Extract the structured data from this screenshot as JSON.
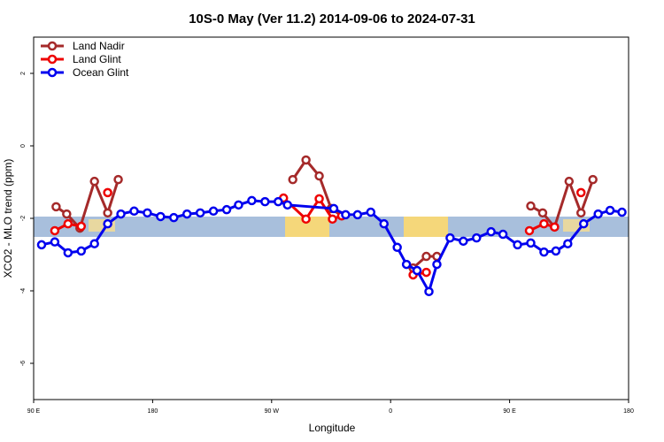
{
  "chart_data": {
    "type": "line",
    "title": "10S-0 May (Ver 11.2)   2014-09-06 to 2024-07-31",
    "x_label": "Longitude",
    "y_label": "XCO2 - MLO trend (ppm)",
    "xlim": [
      90,
      540
    ],
    "xticks": [
      {
        "value": 90,
        "label": "90 E"
      },
      {
        "value": 180,
        "label": "180"
      },
      {
        "value": 270,
        "label": "90 W"
      },
      {
        "value": 360,
        "label": "0"
      },
      {
        "value": 450,
        "label": "90 E"
      },
      {
        "value": 540,
        "label": "180"
      }
    ],
    "ylim": [
      -7,
      3
    ],
    "yticks": [
      -6,
      -4,
      -2,
      0,
      2
    ],
    "legend": "upper left",
    "series": [
      {
        "name": "Land Nadir",
        "color": "#a52a2a",
        "x": [
          107,
          115,
          125,
          136,
          146,
          154,
          null,
          286,
          296,
          306,
          315,
          323,
          null,
          377,
          387,
          395,
          null,
          466,
          475,
          484,
          495,
          504,
          513
        ],
        "values": [
          -1.68,
          -1.88,
          -2.27,
          -0.98,
          -1.85,
          -0.93,
          null,
          -0.93,
          -0.39,
          -0.83,
          -1.73,
          -1.93,
          null,
          -3.37,
          -3.05,
          -3.05,
          null,
          -1.66,
          -1.85,
          -2.24,
          -0.98,
          -1.85,
          -0.93
        ]
      },
      {
        "name": "Land Glint",
        "color": "#ee0000",
        "x": [
          106,
          116,
          126,
          null,
          146,
          null,
          279,
          296,
          306,
          316,
          323,
          null,
          377,
          387,
          null,
          465,
          476,
          484,
          null,
          504
        ],
        "values": [
          -2.34,
          -2.15,
          -2.22,
          null,
          -1.29,
          null,
          -1.44,
          -2.02,
          -1.46,
          -2.02,
          -1.93,
          null,
          -3.56,
          -3.49,
          null,
          -2.34,
          -2.15,
          -2.24,
          null,
          -1.29
        ]
      },
      {
        "name": "Ocean Glint",
        "color": "#0000ee",
        "x": [
          96,
          106,
          116,
          126,
          136,
          146,
          156,
          166,
          176,
          186,
          196,
          206,
          216,
          226,
          236,
          245,
          255,
          265,
          275,
          282,
          317,
          326,
          335,
          345,
          355,
          365,
          372,
          380,
          389,
          395,
          405,
          415,
          425,
          436,
          445,
          456,
          466,
          476,
          485,
          494,
          506,
          517,
          526,
          535
        ],
        "values": [
          -2.73,
          -2.65,
          -2.95,
          -2.9,
          -2.7,
          -2.15,
          -1.88,
          -1.8,
          -1.85,
          -1.95,
          -1.98,
          -1.88,
          -1.85,
          -1.8,
          -1.76,
          -1.63,
          -1.51,
          -1.54,
          -1.54,
          -1.63,
          -1.73,
          -1.9,
          -1.9,
          -1.83,
          -2.15,
          -2.8,
          -3.27,
          -3.44,
          -4.02,
          -3.27,
          -2.54,
          -2.63,
          -2.54,
          -2.37,
          -2.44,
          -2.73,
          -2.68,
          -2.93,
          -2.9,
          -2.7,
          -2.15,
          -1.88,
          -1.78,
          -1.83
        ]
      }
    ]
  }
}
